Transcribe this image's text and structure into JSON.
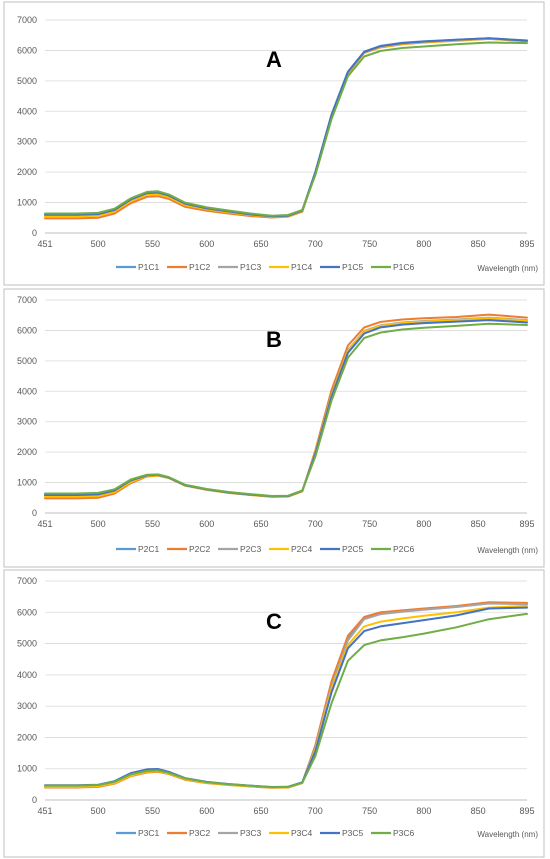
{
  "chart_data": [
    {
      "type": "line",
      "panel_label": "A",
      "xlabel": "Wavelength (nm)",
      "ylabel": "",
      "xlim": [
        451,
        895
      ],
      "ylim": [
        0,
        7000
      ],
      "x_ticks": [
        "451",
        "500",
        "550",
        "600",
        "650",
        "700",
        "750",
        "800",
        "850",
        "895"
      ],
      "y_ticks": [
        "0",
        "1000",
        "2000",
        "3000",
        "4000",
        "5000",
        "6000",
        "7000"
      ],
      "grid": "horizontal",
      "legend_position": "bottom",
      "x": [
        451,
        480,
        500,
        515,
        530,
        545,
        555,
        565,
        580,
        600,
        620,
        640,
        660,
        675,
        688,
        700,
        715,
        730,
        745,
        760,
        780,
        800,
        830,
        860,
        895
      ],
      "series": [
        {
          "name": "P1C1",
          "color": "#5B9BD5",
          "values": [
            620,
            620,
            640,
            780,
            1120,
            1330,
            1350,
            1250,
            980,
            820,
            720,
            620,
            560,
            580,
            750,
            2000,
            3900,
            5300,
            5960,
            6150,
            6250,
            6300,
            6350,
            6400,
            6330
          ]
        },
        {
          "name": "P1C2",
          "color": "#ED7D31",
          "values": [
            480,
            480,
            500,
            640,
            980,
            1190,
            1210,
            1120,
            860,
            730,
            640,
            560,
            510,
            540,
            700,
            1950,
            3850,
            5250,
            5920,
            6100,
            6200,
            6260,
            6320,
            6380,
            6300
          ]
        },
        {
          "name": "P1C3",
          "color": "#A5A5A5",
          "values": [
            580,
            580,
            600,
            740,
            1080,
            1290,
            1310,
            1210,
            950,
            800,
            700,
            600,
            545,
            565,
            735,
            1980,
            3880,
            5280,
            5940,
            6130,
            6230,
            6280,
            6340,
            6390,
            6320
          ]
        },
        {
          "name": "P1C4",
          "color": "#FFC000",
          "values": [
            550,
            550,
            570,
            710,
            1050,
            1260,
            1280,
            1180,
            920,
            780,
            680,
            590,
            535,
            555,
            725,
            1970,
            3870,
            5270,
            5930,
            6120,
            6220,
            6270,
            6330,
            6390,
            6310
          ]
        },
        {
          "name": "P1C5",
          "color": "#4472C4",
          "values": [
            600,
            600,
            620,
            760,
            1100,
            1310,
            1330,
            1230,
            965,
            810,
            710,
            610,
            550,
            570,
            740,
            1990,
            3890,
            5290,
            5950,
            6140,
            6240,
            6290,
            6350,
            6400,
            6320
          ]
        },
        {
          "name": "P1C6",
          "color": "#70AD47",
          "values": [
            640,
            640,
            660,
            800,
            1140,
            1350,
            1370,
            1270,
            1000,
            840,
            740,
            640,
            570,
            590,
            760,
            1900,
            3750,
            5150,
            5800,
            5980,
            6080,
            6130,
            6200,
            6260,
            6240
          ]
        }
      ]
    },
    {
      "type": "line",
      "panel_label": "B",
      "xlabel": "Wavelength (nm)",
      "ylabel": "",
      "xlim": [
        451,
        895
      ],
      "ylim": [
        0,
        7000
      ],
      "x_ticks": [
        "451",
        "500",
        "550",
        "600",
        "650",
        "700",
        "750",
        "800",
        "850",
        "895"
      ],
      "y_ticks": [
        "0",
        "1000",
        "2000",
        "3000",
        "4000",
        "5000",
        "6000",
        "7000"
      ],
      "grid": "horizontal",
      "legend_position": "bottom",
      "x": [
        451,
        480,
        500,
        515,
        530,
        545,
        555,
        565,
        580,
        600,
        620,
        640,
        660,
        675,
        688,
        700,
        715,
        730,
        745,
        760,
        780,
        800,
        830,
        860,
        895
      ],
      "series": [
        {
          "name": "P2C1",
          "color": "#5B9BD5",
          "values": [
            600,
            600,
            620,
            750,
            1080,
            1240,
            1260,
            1170,
            920,
            780,
            680,
            610,
            550,
            560,
            730,
            1950,
            3850,
            5300,
            5950,
            6150,
            6240,
            6300,
            6350,
            6400,
            6330
          ]
        },
        {
          "name": "P2C2",
          "color": "#ED7D31",
          "values": [
            480,
            480,
            500,
            640,
            980,
            1200,
            1230,
            1150,
            900,
            760,
            660,
            590,
            530,
            540,
            710,
            2050,
            4050,
            5500,
            6100,
            6280,
            6360,
            6400,
            6440,
            6520,
            6420
          ]
        },
        {
          "name": "P2C3",
          "color": "#A5A5A5",
          "values": [
            570,
            570,
            590,
            720,
            1050,
            1230,
            1250,
            1160,
            910,
            770,
            670,
            600,
            545,
            555,
            725,
            1980,
            3900,
            5350,
            5980,
            6170,
            6260,
            6310,
            6360,
            6420,
            6340
          ]
        },
        {
          "name": "P2C4",
          "color": "#FFC000",
          "values": [
            540,
            540,
            560,
            690,
            1020,
            1220,
            1240,
            1155,
            905,
            765,
            665,
            595,
            540,
            550,
            720,
            1960,
            3870,
            5320,
            5960,
            6150,
            6240,
            6290,
            6340,
            6400,
            6320
          ]
        },
        {
          "name": "P2C5",
          "color": "#4472C4",
          "values": [
            590,
            590,
            610,
            740,
            1070,
            1240,
            1255,
            1165,
            915,
            775,
            675,
            605,
            548,
            558,
            728,
            1940,
            3830,
            5260,
            5900,
            6100,
            6190,
            6240,
            6290,
            6340,
            6260
          ]
        },
        {
          "name": "P2C6",
          "color": "#70AD47",
          "values": [
            640,
            640,
            660,
            780,
            1100,
            1260,
            1270,
            1180,
            930,
            790,
            690,
            620,
            560,
            570,
            740,
            1850,
            3700,
            5100,
            5750,
            5930,
            6030,
            6090,
            6150,
            6220,
            6180
          ]
        }
      ]
    },
    {
      "type": "line",
      "panel_label": "C",
      "xlabel": "Wavelength (nm)",
      "ylabel": "",
      "xlim": [
        451,
        895
      ],
      "ylim": [
        0,
        7000
      ],
      "x_ticks": [
        "451",
        "500",
        "550",
        "600",
        "650",
        "700",
        "750",
        "800",
        "850",
        "895"
      ],
      "y_ticks": [
        "0",
        "1000",
        "2000",
        "3000",
        "4000",
        "5000",
        "6000",
        "7000"
      ],
      "grid": "horizontal",
      "legend_position": "bottom",
      "x": [
        451,
        480,
        500,
        515,
        530,
        545,
        555,
        565,
        580,
        600,
        620,
        640,
        660,
        675,
        688,
        700,
        715,
        730,
        745,
        760,
        780,
        800,
        830,
        860,
        895
      ],
      "series": [
        {
          "name": "P3C1",
          "color": "#5B9BD5",
          "values": [
            440,
            440,
            460,
            560,
            800,
            920,
            940,
            860,
            680,
            560,
            500,
            450,
            410,
            420,
            560,
            1700,
            3700,
            5150,
            5800,
            5950,
            6030,
            6100,
            6180,
            6300,
            6280
          ]
        },
        {
          "name": "P3C2",
          "color": "#ED7D31",
          "values": [
            400,
            400,
            420,
            520,
            760,
            880,
            900,
            830,
            650,
            540,
            480,
            430,
            390,
            400,
            540,
            1750,
            3800,
            5250,
            5850,
            6000,
            6060,
            6120,
            6200,
            6320,
            6300
          ]
        },
        {
          "name": "P3C3",
          "color": "#A5A5A5",
          "values": [
            430,
            430,
            450,
            550,
            790,
            910,
            930,
            850,
            670,
            555,
            495,
            445,
            405,
            415,
            555,
            1680,
            3650,
            5100,
            5780,
            5940,
            6020,
            6080,
            6170,
            6280,
            6260
          ]
        },
        {
          "name": "P3C4",
          "color": "#FFC000",
          "values": [
            420,
            420,
            440,
            540,
            780,
            900,
            920,
            845,
            665,
            550,
            490,
            440,
            400,
            410,
            550,
            1600,
            3550,
            4950,
            5550,
            5700,
            5800,
            5890,
            6000,
            6150,
            6200
          ]
        },
        {
          "name": "P3C5",
          "color": "#4472C4",
          "values": [
            470,
            470,
            490,
            600,
            860,
            980,
            990,
            900,
            700,
            580,
            510,
            460,
            415,
            425,
            565,
            1550,
            3450,
            4850,
            5400,
            5550,
            5650,
            5750,
            5900,
            6120,
            6150
          ]
        },
        {
          "name": "P3C6",
          "color": "#70AD47",
          "values": [
            460,
            460,
            480,
            580,
            820,
            930,
            945,
            870,
            690,
            570,
            505,
            455,
            410,
            420,
            550,
            1400,
            3100,
            4450,
            4950,
            5100,
            5200,
            5320,
            5520,
            5780,
            5950
          ]
        }
      ]
    }
  ]
}
